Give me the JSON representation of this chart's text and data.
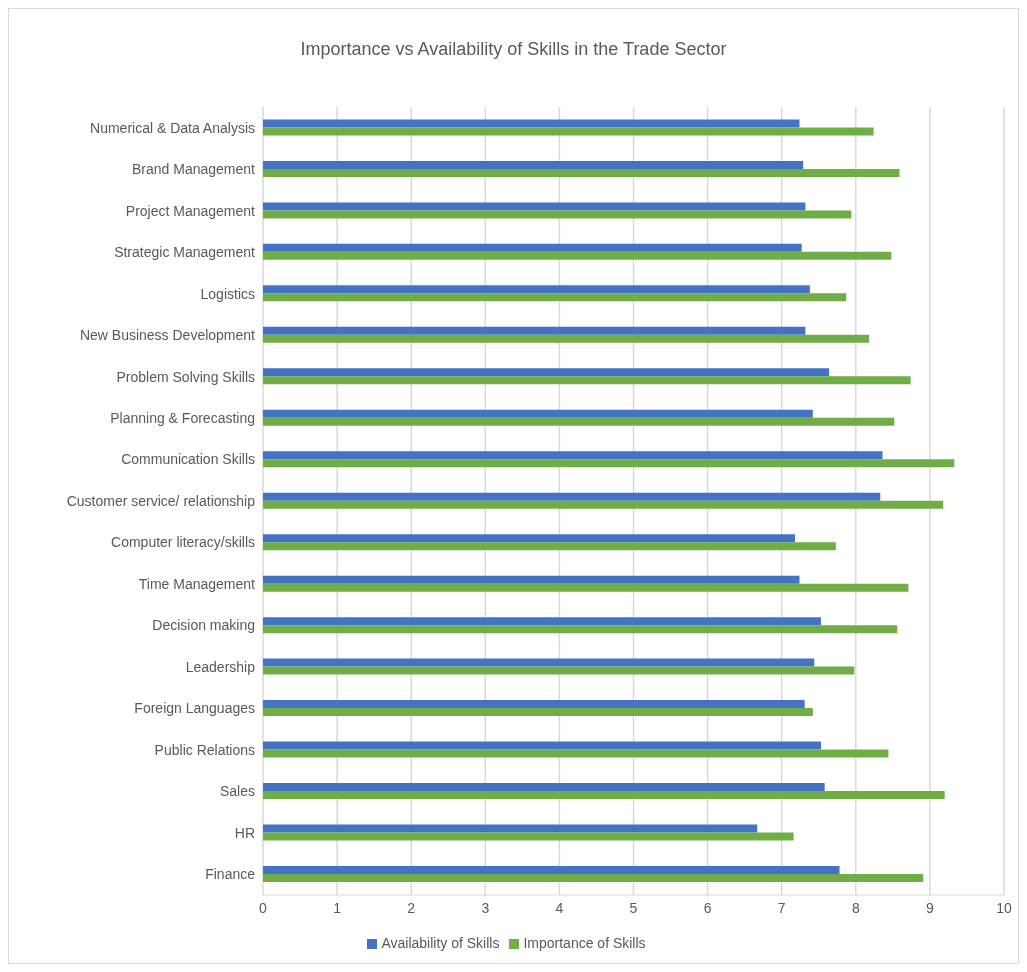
{
  "chart_data": {
    "type": "bar",
    "orientation": "horizontal",
    "title": "Importance vs Availability of Skills in the Trade Sector",
    "categories": [
      "Numerical & Data Analysis",
      "Brand Management",
      "Project Management",
      "Strategic Management",
      "Logistics",
      "New Business Development",
      "Problem Solving Skills",
      "Planning & Forecasting",
      "Communication Skills",
      "Customer service/ relationship",
      "Computer literacy/skills",
      "Time Management",
      "Decision making",
      "Leadership",
      "Foreign Languages",
      "Public Relations",
      "Sales",
      "HR",
      "Finance"
    ],
    "series": [
      {
        "name": "Availability of Skills",
        "color": "#4472c4",
        "values": [
          7.24,
          7.29,
          7.32,
          7.27,
          7.38,
          7.32,
          7.64,
          7.42,
          8.36,
          8.33,
          7.18,
          7.24,
          7.53,
          7.44,
          7.31,
          7.53,
          7.58,
          6.67,
          7.78
        ]
      },
      {
        "name": "Importance of Skills",
        "color": "#70ad47",
        "values": [
          8.24,
          8.59,
          7.94,
          8.48,
          7.87,
          8.18,
          8.74,
          8.52,
          9.33,
          9.18,
          7.73,
          8.71,
          8.56,
          7.98,
          7.42,
          8.44,
          9.2,
          7.16,
          8.91
        ]
      }
    ],
    "xlim": [
      0,
      10
    ],
    "xticks": [
      0,
      1,
      2,
      3,
      4,
      5,
      6,
      7,
      8,
      9,
      10
    ],
    "grid": "x",
    "legend": "bottom"
  }
}
